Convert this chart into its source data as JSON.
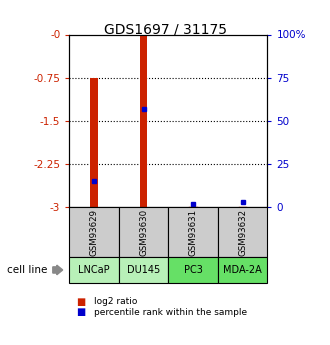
{
  "title": "GDS1697 / 31175",
  "samples": [
    "GSM93629",
    "GSM93630",
    "GSM93631",
    "GSM93632"
  ],
  "cell_lines": [
    "LNCaP",
    "DU145",
    "PC3",
    "MDA-2A"
  ],
  "cell_line_colors": [
    "#b8f0b8",
    "#b8f0b8",
    "#66e066",
    "#66e066"
  ],
  "log2_bar_tops": [
    -0.75,
    0.0,
    -3.0,
    -3.0
  ],
  "log2_bar_bottoms": [
    -3.0,
    -3.0,
    -3.0,
    -3.0
  ],
  "percentile_ranks": [
    15,
    57,
    2,
    3
  ],
  "left_ticks": [
    0,
    -0.75,
    -1.5,
    -2.25,
    -3
  ],
  "right_ticks_labels": [
    "100%",
    "75",
    "50",
    "25",
    "0"
  ],
  "dotted_lines": [
    -0.75,
    -1.5,
    -2.25
  ],
  "bar_color": "#cc2200",
  "percentile_color": "#0000cc",
  "bar_width": 0.15,
  "cell_line_label": "cell line",
  "legend_red": "log2 ratio",
  "legend_blue": "percentile rank within the sample",
  "bg_color": "#ffffff",
  "sample_box_color": "#cccccc",
  "ylabel_left_color": "#cc2200",
  "ylabel_right_color": "#0000cc",
  "title_font": "DejaVu Sans",
  "title_fontsize": 10
}
